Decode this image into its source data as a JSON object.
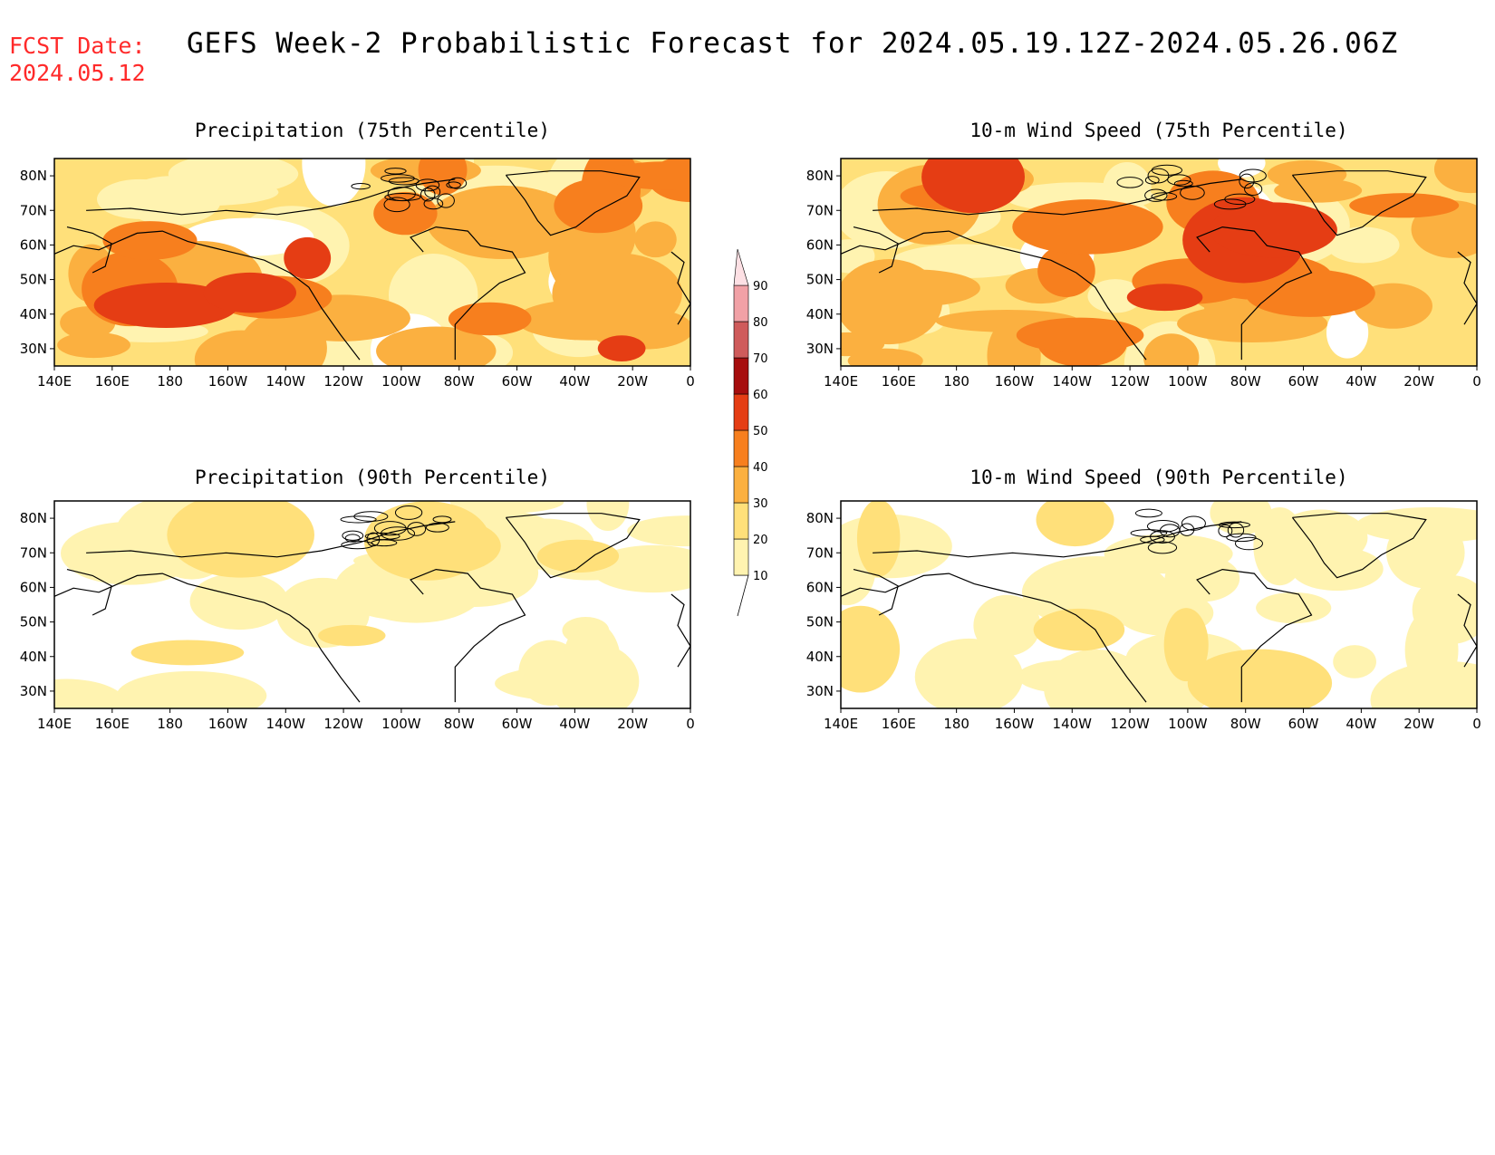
{
  "header": {
    "fcst_label": "FCST Date:",
    "fcst_date": "2024.05.12",
    "title": "GEFS Week-2 Probabilistic Forecast for 2024.05.19.12Z-2024.05.26.06Z"
  },
  "colors": {
    "fcst_text": "#ff2a2a",
    "palette": [
      "#ffffff",
      "#fff3b0",
      "#ffe07a",
      "#fbb040",
      "#f77f1e",
      "#e53d14",
      "#a60d0d",
      "#cf5b5b",
      "#f1a1a6",
      "#fde0e4"
    ]
  },
  "colorbar": {
    "levels": [
      "10",
      "20",
      "30",
      "40",
      "50",
      "60",
      "70",
      "80",
      "90"
    ]
  },
  "axes": {
    "lon_labels": [
      "140E",
      "160E",
      "180",
      "160W",
      "140W",
      "120W",
      "100W",
      "80W",
      "60W",
      "40W",
      "20W",
      "0"
    ],
    "lat_labels": [
      "80N",
      "70N",
      "60N",
      "50N",
      "40N",
      "30N"
    ]
  },
  "panels": [
    {
      "title": "Precipitation (75th Percentile)",
      "intensity": "high"
    },
    {
      "title": "10-m Wind Speed (75th Percentile)",
      "intensity": "high"
    },
    {
      "title": "Precipitation (90th Percentile)",
      "intensity": "low"
    },
    {
      "title": "10-m Wind Speed (90th Percentile)",
      "intensity": "low"
    }
  ]
}
